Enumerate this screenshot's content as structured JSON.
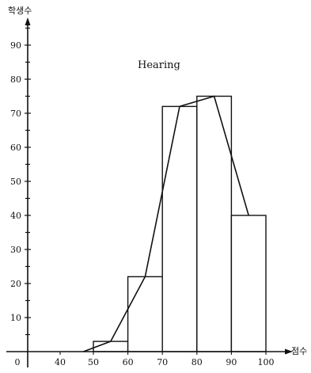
{
  "chart_data": {
    "type": "bar",
    "title": "Hearing",
    "ylabel": "학생수",
    "xlabel": "점수",
    "bin_edges": [
      50,
      60,
      70,
      80,
      90,
      100
    ],
    "values": [
      3,
      22,
      72,
      75,
      40
    ],
    "polygon_x": [
      47,
      55,
      65,
      75,
      85,
      95
    ],
    "polygon_y": [
      0,
      3,
      22,
      72,
      75,
      40
    ],
    "xlim": [
      0,
      103
    ],
    "ylim": [
      0,
      95
    ],
    "x_ticks": [
      "0",
      "40",
      "50",
      "60",
      "70",
      "80",
      "90",
      "100"
    ],
    "y_ticks": [
      "10",
      "20",
      "30",
      "40",
      "50",
      "60",
      "70",
      "80",
      "90"
    ],
    "grid": false,
    "colors": {
      "bar_fill": "#ffffff",
      "line": "#111111"
    }
  }
}
